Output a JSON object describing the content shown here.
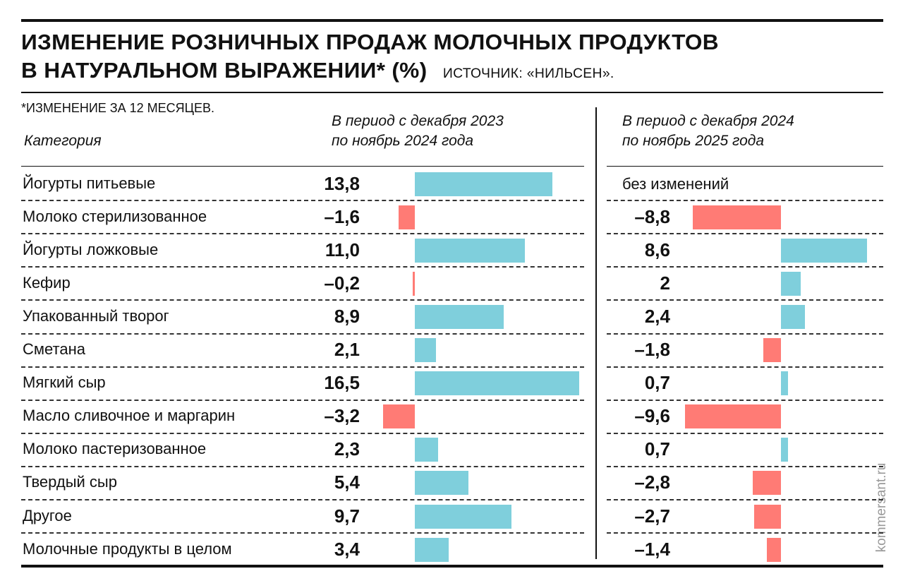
{
  "title_line1": "ИЗМЕНЕНИЕ РОЗНИЧНЫХ ПРОДАЖ МОЛОЧНЫХ ПРОДУКТОВ",
  "title_line2": "В НАТУРАЛЬНОМ ВЫРАЖЕНИИ* (%)",
  "source": "ИСТОЧНИК: «НИЛЬСЕН».",
  "footnote": "*ИЗМЕНЕНИЕ ЗА 12 МЕСЯЦЕВ.",
  "category_header": "Категория",
  "watermark": "kommersant.ru",
  "colors": {
    "positive": "#7fcfdc",
    "negative": "#ff7b75"
  },
  "chart_data": {
    "type": "bar",
    "orientation": "horizontal",
    "categories": [
      "Йогурты питьевые",
      "Молоко стерилизованное",
      "Йогурты ложковые",
      "Кефир",
      "Упакованный творог",
      "Сметана",
      "Мягкий сыр",
      "Масло сливочное и маргарин",
      "Молоко пастеризованное",
      "Твердый сыр",
      "Другое",
      "Молочные продукты в целом"
    ],
    "series": [
      {
        "name": "В период с декабря 2023 по ноябрь 2024 года",
        "name_line1": "В период с декабря 2023",
        "name_line2": "по ноябрь 2024 года",
        "values": [
          13.8,
          -1.6,
          11.0,
          -0.2,
          8.9,
          2.1,
          16.5,
          -3.2,
          2.3,
          5.4,
          9.7,
          3.4
        ],
        "labels": [
          "13,8",
          "–1,6",
          "11,0",
          "–0,2",
          "8,9",
          "2,1",
          "16,5",
          "–3,2",
          "2,3",
          "5,4",
          "9,7",
          "3,4"
        ]
      },
      {
        "name": "В период с декабря 2024 по ноябрь 2025 года",
        "name_line1": "В период с декабря 2024",
        "name_line2": "по ноябрь 2025 года",
        "values": [
          0,
          -8.8,
          8.6,
          2,
          2.4,
          -1.8,
          0.7,
          -9.6,
          0.7,
          -2.8,
          -2.7,
          -1.4
        ],
        "labels": [
          "без изменений",
          "–8,8",
          "8,6",
          "2",
          "2,4",
          "–1,8",
          "0,7",
          "–9,6",
          "0,7",
          "–2,8",
          "–2,7",
          "–1,4"
        ]
      }
    ]
  }
}
